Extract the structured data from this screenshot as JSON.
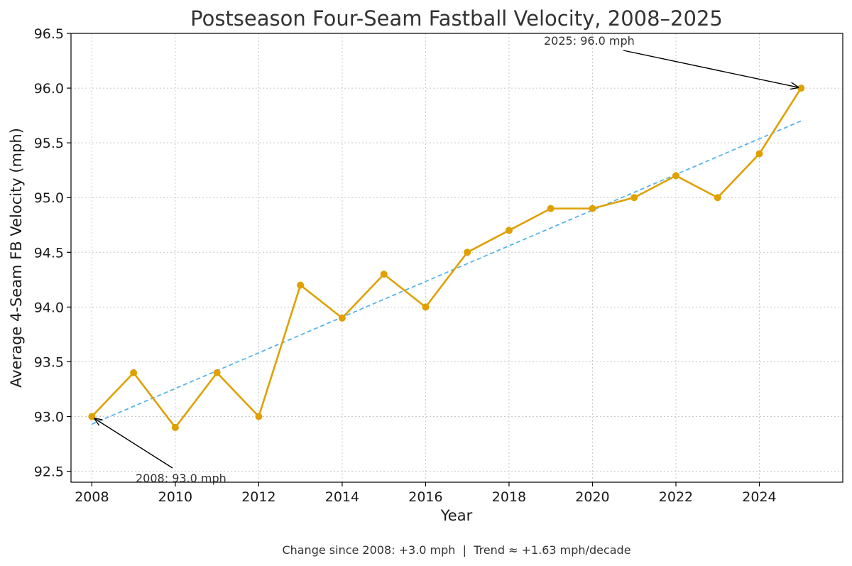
{
  "chart_data": {
    "type": "line",
    "title": "Postseason Four-Seam Fastball Velocity, 2008–2025",
    "xlabel": "Year",
    "ylabel": "Average 4-Seam FB Velocity (mph)",
    "xlim": [
      2007.5,
      2026
    ],
    "ylim": [
      92.4,
      96.5
    ],
    "xticks": [
      2008,
      2010,
      2012,
      2014,
      2016,
      2018,
      2020,
      2022,
      2024
    ],
    "yticks": [
      "92.5",
      "93.0",
      "93.5",
      "94.0",
      "94.5",
      "95.0",
      "95.5",
      "96.0",
      "96.5"
    ],
    "grid": true,
    "series": [
      {
        "color": "#E0A000",
        "x": [
          2008,
          2009,
          2010,
          2011,
          2012,
          2013,
          2014,
          2015,
          2016,
          2017,
          2018,
          2019,
          2020,
          2021,
          2022,
          2023,
          2024,
          2025
        ],
        "y": [
          93.0,
          93.4,
          92.9,
          93.4,
          93.0,
          94.2,
          93.9,
          94.3,
          94.0,
          94.5,
          94.7,
          94.9,
          94.9,
          95.0,
          95.2,
          95.0,
          95.4,
          96.0
        ]
      }
    ],
    "trend": {
      "style": "dashed",
      "color": "#56B4E9",
      "x": [
        2008,
        2025
      ],
      "y": [
        92.93,
        95.7
      ]
    },
    "annotations": [
      {
        "text": "2008: 93.0 mph",
        "x": 2008,
        "y": 93.0
      },
      {
        "text": "2025: 96.0 mph",
        "x": 2025,
        "y": 96.0
      }
    ],
    "footer": "Change since 2008: +3.0 mph  |  Trend ≈ +1.63 mph/decade"
  }
}
